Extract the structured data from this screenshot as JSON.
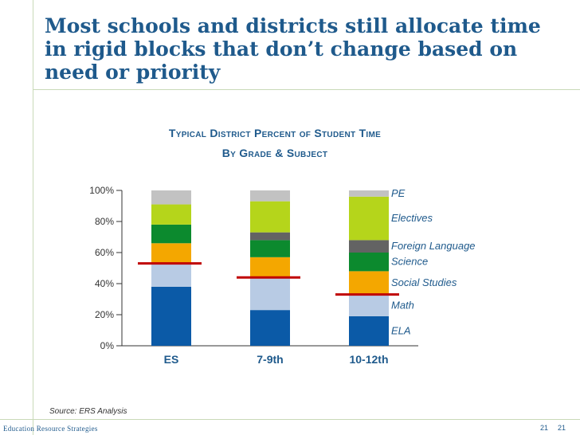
{
  "slide": {
    "title_lines": [
      "Most schools and districts still allocate time",
      "in rigid blocks that don’t change based on",
      "need or priority"
    ],
    "source": "Source: ERS Analysis",
    "org": "Education Resource Strategies",
    "page_number_left": "21",
    "page_number_right": "21"
  },
  "chart_data": {
    "type": "bar",
    "stacked": true,
    "title_lines": [
      "Typical District Percent of Student Time",
      "By Grade & Subject"
    ],
    "categories": [
      "ES",
      "7-9th",
      "10-12th"
    ],
    "ylim": [
      0,
      100
    ],
    "yticks": [
      0,
      20,
      40,
      60,
      80,
      100
    ],
    "ytick_labels": [
      "0%",
      "20%",
      "40%",
      "60%",
      "80%",
      "100%"
    ],
    "series": [
      {
        "name": "ELA",
        "color": "#0b5aa7",
        "values": [
          38,
          23,
          19
        ]
      },
      {
        "name": "Math",
        "color": "#b8cbe4",
        "values": [
          15,
          21,
          14
        ]
      },
      {
        "name": "Social Studies",
        "color": "#f4a700",
        "values": [
          13,
          13,
          15
        ]
      },
      {
        "name": "Science",
        "color": "#0c8a2e",
        "values": [
          12,
          11,
          12
        ]
      },
      {
        "name": "Foreign Language",
        "color": "#636363",
        "values": [
          0,
          5,
          8
        ]
      },
      {
        "name": "Electives",
        "color": "#b5d51b",
        "values": [
          13,
          20,
          28
        ]
      },
      {
        "name": "PE",
        "color": "#c2c2c2",
        "values": [
          9,
          7,
          4
        ]
      }
    ],
    "highlight_lines": [
      {
        "category": "ES",
        "value": 53
      },
      {
        "category": "7-9th",
        "value": 44
      },
      {
        "category": "10-12th",
        "value": 33
      }
    ],
    "legend_position": "right"
  }
}
